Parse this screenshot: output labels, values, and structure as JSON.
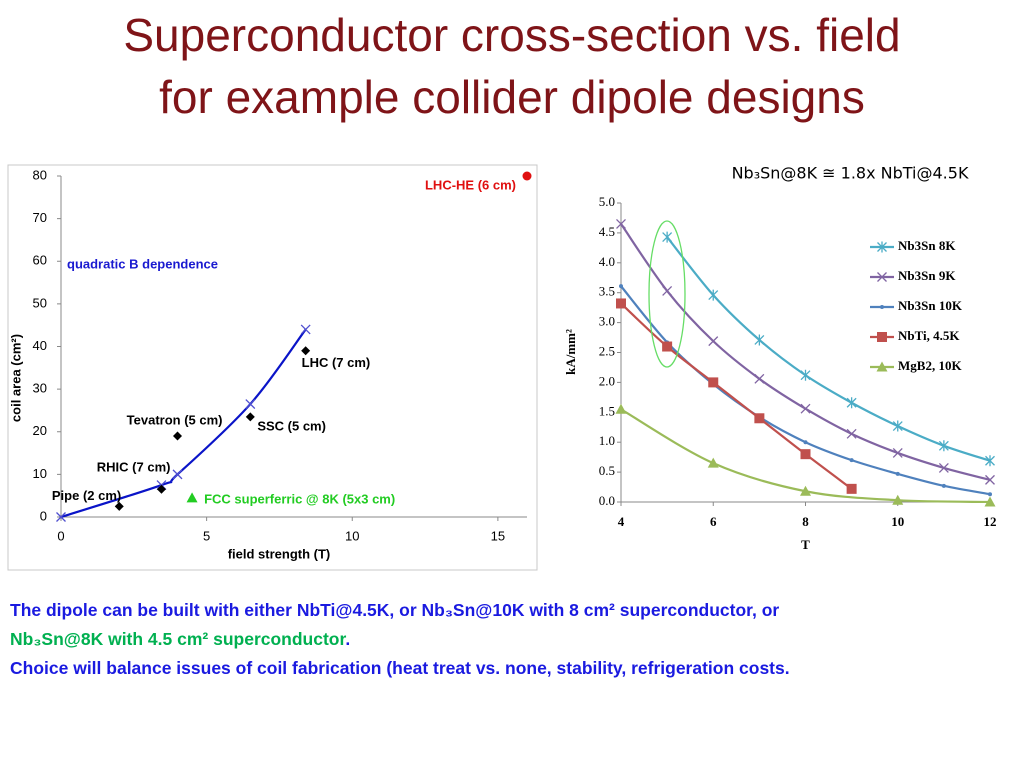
{
  "title": [
    "Superconductor cross-section vs. field",
    "for example collider dipole designs"
  ],
  "chart_data": [
    {
      "type": "scatter",
      "xlabel": "field strength (T)",
      "ylabel": "coil area (cm²)",
      "annotations": [
        "quadratic B dependence"
      ],
      "xlim": [
        0,
        16
      ],
      "ylim": [
        0,
        80
      ],
      "xticks": [
        0,
        5,
        10,
        15
      ],
      "yticks": [
        0,
        10,
        20,
        30,
        40,
        50,
        60,
        70,
        80
      ],
      "fit": {
        "color": "#0a14c8",
        "marker_color": "#5050d0",
        "marker": "x",
        "x": [
          0,
          3.45,
          4,
          6.5,
          8.4
        ],
        "values": [
          0,
          7.5,
          10,
          26.5,
          44
        ]
      },
      "points": [
        {
          "label": "Pipe (2 cm)",
          "x": 2,
          "y": 2.5,
          "marker": "diamond",
          "color": "#000000"
        },
        {
          "label": "RHIC (7 cm)",
          "x": 3.45,
          "y": 6.5,
          "marker": "diamond",
          "color": "#000000"
        },
        {
          "label": "Tevatron (5 cm)",
          "x": 4,
          "y": 19,
          "marker": "diamond",
          "color": "#000000"
        },
        {
          "label": "SSC (5 cm)",
          "x": 6.5,
          "y": 23.5,
          "marker": "diamond",
          "color": "#000000"
        },
        {
          "label": "LHC (7 cm)",
          "x": 8.4,
          "y": 39,
          "marker": "diamond",
          "color": "#000000"
        },
        {
          "label": "FCC superferric @ 8K (5x3 cm)",
          "x": 4.5,
          "y": 4.5,
          "marker": "triangle",
          "color": "#22cc22"
        },
        {
          "label": "LHC-HE  (6 cm)",
          "x": 16,
          "y": 80,
          "marker": "circle",
          "color": "#e01010"
        }
      ]
    },
    {
      "type": "line",
      "title": "Nb₃Sn@8K ≅ 1.8x NbTi@4.5K",
      "xlabel": "T",
      "ylabel": "kA/mm²",
      "xlim": [
        4,
        12
      ],
      "ylim": [
        0,
        5
      ],
      "xticks": [
        4,
        6,
        8,
        10,
        12
      ],
      "yticks": [
        {
          "value": 0,
          "label": "0.0"
        },
        {
          "value": 0.5,
          "label": "0.5"
        },
        {
          "value": 1,
          "label": "1.0"
        },
        {
          "value": 1.5,
          "label": "1.5"
        },
        {
          "value": 2,
          "label": "2.0"
        },
        {
          "value": 2.5,
          "label": "2.5"
        },
        {
          "value": 3,
          "label": "3.0"
        },
        {
          "value": 3.5,
          "label": "3.5"
        },
        {
          "value": 4,
          "label": "4.0"
        },
        {
          "value": 4.5,
          "label": "4.5"
        },
        {
          "value": 5,
          "label": "5.0"
        }
      ],
      "legend": "right",
      "series": [
        {
          "name": "Nb3Sn 8K",
          "color": "#4bacc6",
          "marker": "asterisk",
          "x": [
            5,
            6,
            7,
            8,
            9,
            10,
            11,
            12
          ],
          "values": [
            4.43,
            3.46,
            2.71,
            2.12,
            1.66,
            1.27,
            0.94,
            0.69
          ]
        },
        {
          "name": "Nb3Sn 9K",
          "color": "#8064a2",
          "marker": "x",
          "x": [
            4,
            5,
            6,
            7,
            8,
            9,
            10,
            11,
            12
          ],
          "values": [
            4.65,
            3.53,
            2.69,
            2.06,
            1.56,
            1.14,
            0.82,
            0.57,
            0.37
          ]
        },
        {
          "name": "Nb3Sn 10K",
          "color": "#4f81bd",
          "marker": "dot",
          "x": [
            4,
            5,
            6,
            7,
            8,
            9,
            10,
            11,
            12
          ],
          "values": [
            3.61,
            2.67,
            1.97,
            1.42,
            1.0,
            0.7,
            0.47,
            0.27,
            0.13
          ]
        },
        {
          "name": "NbTi, 4.5K",
          "color": "#c0504d",
          "marker": "square",
          "x": [
            4,
            5,
            6,
            7,
            8,
            9
          ],
          "values": [
            3.32,
            2.6,
            2.0,
            1.4,
            0.8,
            0.22
          ]
        },
        {
          "name": "MgB2, 10K",
          "color": "#9bbb59",
          "marker": "triangle",
          "x": [
            4,
            6,
            8,
            10,
            12
          ],
          "values": [
            1.55,
            0.65,
            0.18,
            0.03,
            0
          ]
        }
      ]
    }
  ],
  "notes": [
    "The dipole can be built with either NbTi@4.5K, or Nb₃Sn@10K with 8 cm² superconductor, or",
    "Nb₃Sn@8K with 4.5 cm² superconductor",
    ".",
    "Choice will balance issues of coil fabrication (heat treat vs. none, stability, refrigeration costs."
  ]
}
